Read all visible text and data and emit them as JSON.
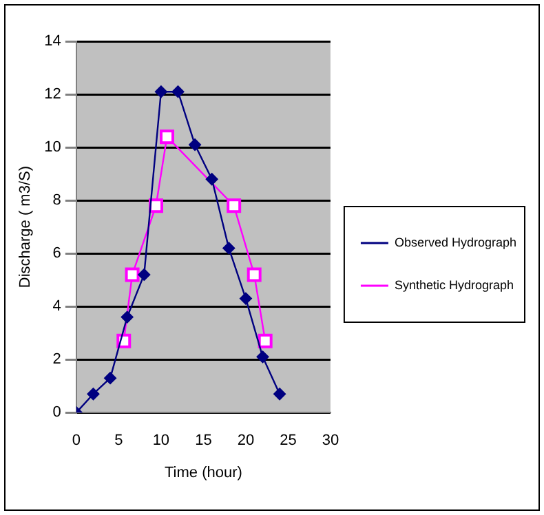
{
  "chart_data": {
    "type": "line",
    "xlabel": "Time (hour)",
    "ylabel": "Discharge ( m3/S)",
    "xlim": [
      0,
      30
    ],
    "xticks": [
      0,
      5,
      10,
      15,
      20,
      25,
      30
    ],
    "ylim": [
      0,
      14
    ],
    "yticks": [
      0,
      2,
      4,
      6,
      8,
      10,
      12,
      14
    ],
    "grid": "y",
    "legend": "right",
    "line_style": "solid",
    "series": [
      {
        "name": "Observed Hydrograph",
        "color": "#000080",
        "marker": "diamond",
        "x": [
          0,
          2,
          4,
          6,
          8,
          10,
          12,
          14,
          16,
          18,
          20,
          22,
          24
        ],
        "values": [
          0,
          0.7,
          1.3,
          3.6,
          5.2,
          12.1,
          12.1,
          10.1,
          8.8,
          6.2,
          4.3,
          2.1,
          0.7
        ]
      },
      {
        "name": "Synthetic Hydrograph",
        "color": "#ff00ff",
        "marker": "square",
        "x": [
          5.6,
          6.6,
          9.4,
          10.7,
          18.6,
          21,
          22.3
        ],
        "values": [
          2.7,
          5.2,
          7.8,
          10.4,
          7.8,
          5.2,
          2.7
        ]
      }
    ]
  }
}
